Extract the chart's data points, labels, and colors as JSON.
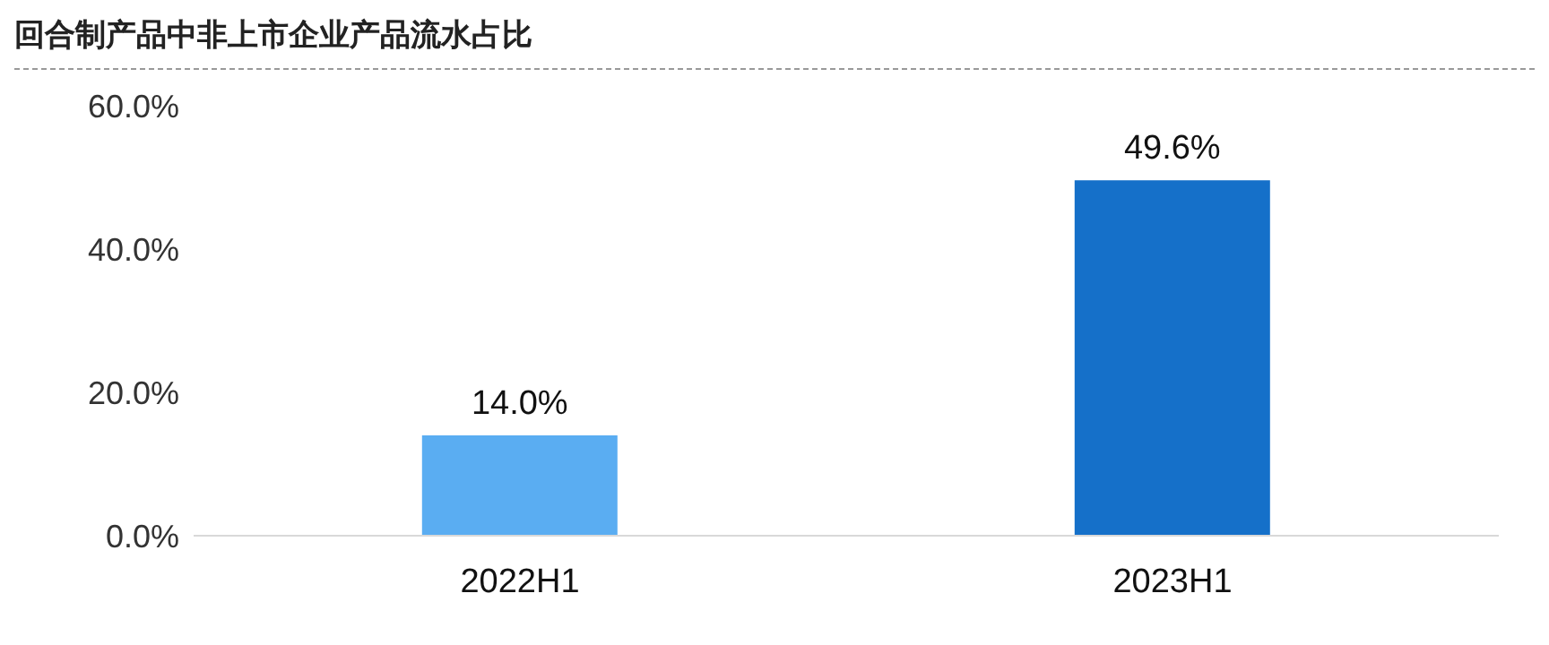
{
  "chart_data": {
    "type": "bar",
    "title": "回合制产品中非上市企业产品流水占比",
    "categories": [
      "2022H1",
      "2023H1"
    ],
    "values": [
      14.0,
      49.6
    ],
    "colors": [
      "#5aadf2",
      "#1570c9"
    ],
    "value_labels": [
      "14.0%",
      "49.6%"
    ],
    "ylim": [
      0,
      60
    ],
    "yticks": [
      {
        "value": 0,
        "label": "0.0%"
      },
      {
        "value": 20,
        "label": "20.0%"
      },
      {
        "value": 40,
        "label": "40.0%"
      },
      {
        "value": 60,
        "label": "60.0%"
      }
    ],
    "grid": false
  }
}
